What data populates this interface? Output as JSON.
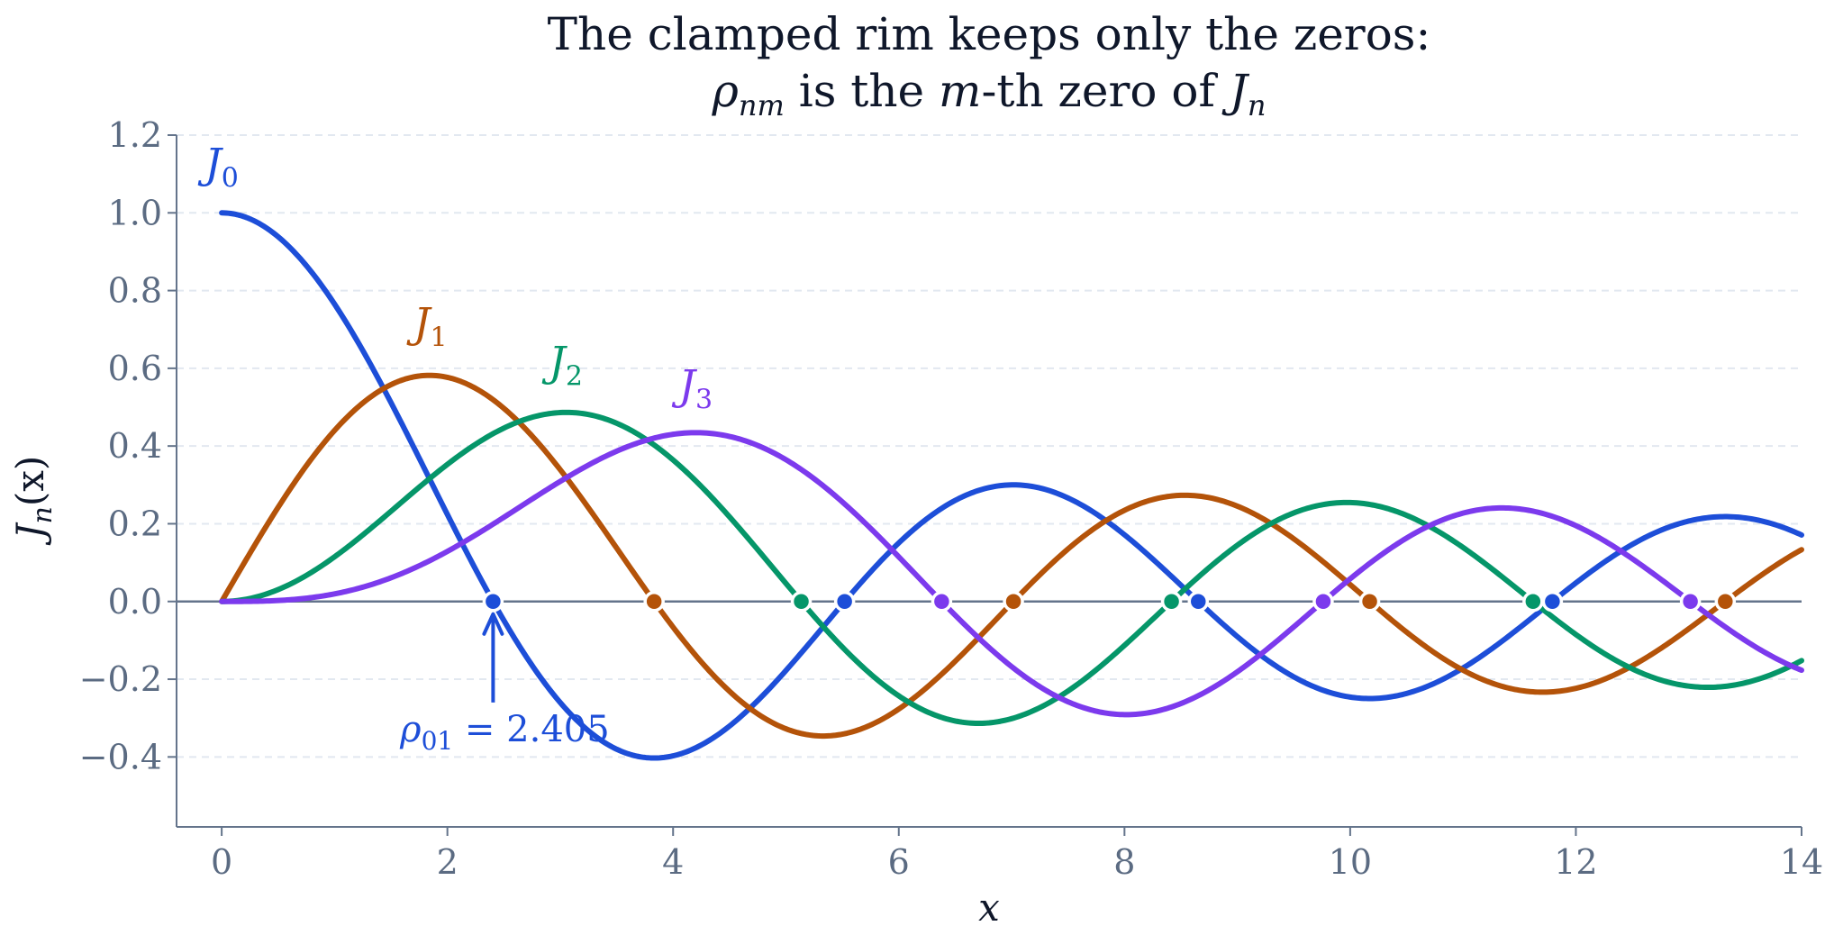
{
  "chart_data": {
    "type": "line",
    "title": {
      "line1": "The clamped rim keeps only the zeros:",
      "line2": {
        "rho": "ρ",
        "rho_sub": "nm",
        "mid": " is the ",
        "m": "m",
        "end": "-th zero of ",
        "J": "J",
        "J_sub": "n"
      }
    },
    "xlabel": "x",
    "ylabel": {
      "J": "J",
      "sub": "n",
      "arg": "(x)"
    },
    "xlim": [
      -0.4,
      14
    ],
    "ylim": [
      -0.58,
      1.2
    ],
    "xticks": [
      0,
      2,
      4,
      6,
      8,
      10,
      12,
      14
    ],
    "xtick_labels": [
      "0",
      "2",
      "4",
      "6",
      "8",
      "10",
      "12",
      "14"
    ],
    "yticks": [
      -0.4,
      -0.2,
      0.0,
      0.2,
      0.4,
      0.6,
      0.8,
      1.0,
      1.2
    ],
    "ytick_labels": [
      "−0.4",
      "−0.2",
      "0.0",
      "0.2",
      "0.4",
      "0.6",
      "0.8",
      "1.0",
      "1.2"
    ],
    "grid": "horizontal dashed",
    "series": [
      {
        "name": "J0",
        "label_main": "J",
        "label_sub": "0",
        "order": 0,
        "color": "#1d4ed8",
        "label_at": [
          -0.15,
          1.09
        ],
        "zeros": [
          2.405,
          5.52,
          8.654,
          11.792
        ]
      },
      {
        "name": "J1",
        "label_main": "J",
        "label_sub": "1",
        "order": 1,
        "color": "#b45309",
        "label_at": [
          1.7,
          0.68
        ],
        "zeros": [
          3.832,
          7.016,
          10.173,
          13.324
        ]
      },
      {
        "name": "J2",
        "label_main": "J",
        "label_sub": "2",
        "order": 2,
        "color": "#059669",
        "label_at": [
          2.9,
          0.58
        ],
        "zeros": [
          5.136,
          8.417,
          11.62
        ]
      },
      {
        "name": "J3",
        "label_main": "J",
        "label_sub": "3",
        "order": 3,
        "color": "#7c3aed",
        "label_at": [
          4.05,
          0.52
        ],
        "zeros": [
          6.38,
          9.761,
          13.015
        ]
      }
    ],
    "annotation": {
      "rho": "ρ",
      "sub": "01",
      "eq": " = 2.405",
      "x": 2.405,
      "y": 0.0,
      "text_at": [
        1.58,
        -0.36
      ],
      "tail": [
        2.405,
        -0.26
      ],
      "color": "#1d4ed8"
    }
  }
}
